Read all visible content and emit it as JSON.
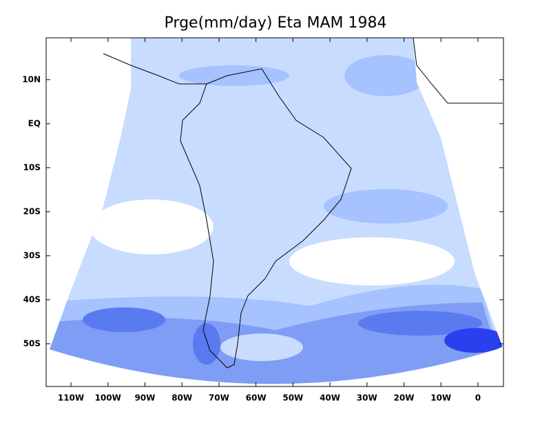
{
  "chart_data": {
    "type": "map",
    "title": "Prge(mm/day) Eta MAM 1984",
    "xlim": [
      -116.7,
      6.9
    ],
    "ylim": [
      -59.7,
      19.5
    ],
    "xticks": [
      {
        "value": -110,
        "label": "110W"
      },
      {
        "value": -100,
        "label": "100W"
      },
      {
        "value": -90,
        "label": "90W"
      },
      {
        "value": -80,
        "label": "80W"
      },
      {
        "value": -70,
        "label": "70W"
      },
      {
        "value": -60,
        "label": "60W"
      },
      {
        "value": -50,
        "label": "50W"
      },
      {
        "value": -40,
        "label": "40W"
      },
      {
        "value": -30,
        "label": "30W"
      },
      {
        "value": -20,
        "label": "20W"
      },
      {
        "value": -10,
        "label": "10W"
      },
      0
    ],
    "yticks": [
      {
        "value": 10,
        "label": "10N"
      },
      {
        "value": 0,
        "label": "EQ"
      },
      {
        "value": -10,
        "label": "10S"
      },
      {
        "value": -20,
        "label": "20S"
      },
      {
        "value": -30,
        "label": "30S"
      },
      {
        "value": -40,
        "label": "40S"
      },
      {
        "value": -50,
        "label": "50S"
      }
    ]
  }
}
